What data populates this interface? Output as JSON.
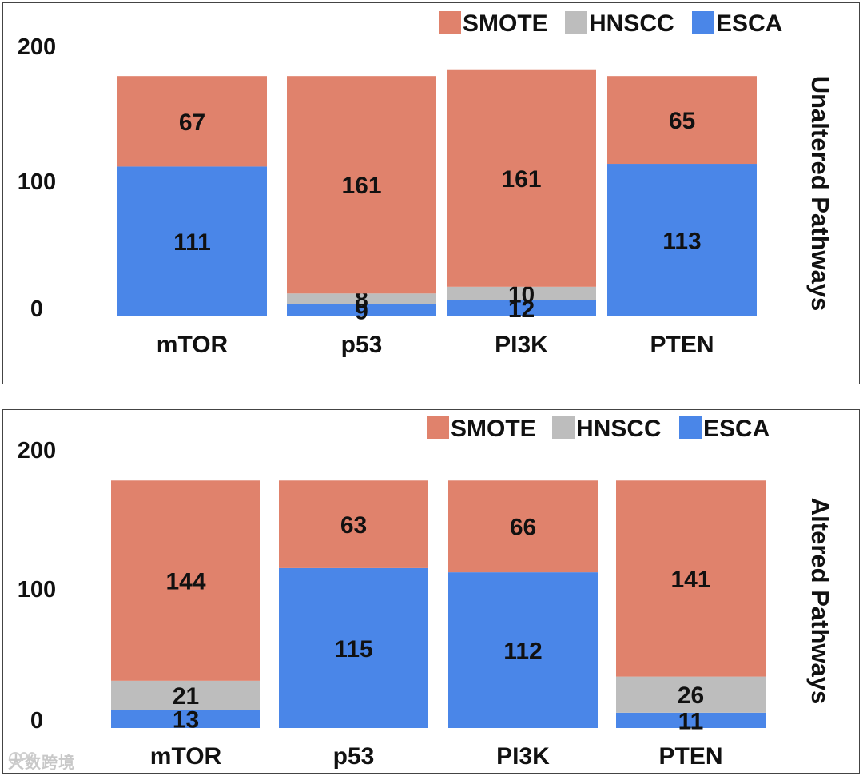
{
  "chart_data": [
    {
      "type": "bar",
      "stacked": true,
      "title": "",
      "side_label": "Unaltered Pathways",
      "categories": [
        "mTOR",
        "p53",
        "PI3K",
        "PTEN"
      ],
      "yticks": [
        "0",
        "100",
        "200"
      ],
      "ylim": [
        0,
        200
      ],
      "legend": [
        "SMOTE",
        "HNSCC",
        "ESCA"
      ],
      "legend_position": "top-right",
      "series": [
        {
          "name": "ESCA",
          "color": "#4a86e8",
          "values": [
            111,
            9,
            12,
            113
          ]
        },
        {
          "name": "HNSCC",
          "color": "#bdbdbd",
          "values": [
            0,
            8,
            10,
            0
          ]
        },
        {
          "name": "SMOTE",
          "color": "#e0826c",
          "values": [
            67,
            161,
            161,
            65
          ]
        }
      ]
    },
    {
      "type": "bar",
      "stacked": true,
      "title": "",
      "side_label": "Altered Pathways",
      "categories": [
        "mTOR",
        "p53",
        "PI3K",
        "PTEN"
      ],
      "yticks": [
        "0",
        "100",
        "200"
      ],
      "ylim": [
        0,
        200
      ],
      "legend": [
        "SMOTE",
        "HNSCC",
        "ESCA"
      ],
      "legend_position": "top-right",
      "series": [
        {
          "name": "ESCA",
          "color": "#4a86e8",
          "values": [
            13,
            115,
            112,
            11
          ]
        },
        {
          "name": "HNSCC",
          "color": "#bdbdbd",
          "values": [
            21,
            0,
            0,
            26
          ]
        },
        {
          "name": "SMOTE",
          "color": "#e0826c",
          "values": [
            144,
            63,
            66,
            141
          ]
        }
      ]
    }
  ],
  "watermark": {
    "text": "大数跨境"
  }
}
